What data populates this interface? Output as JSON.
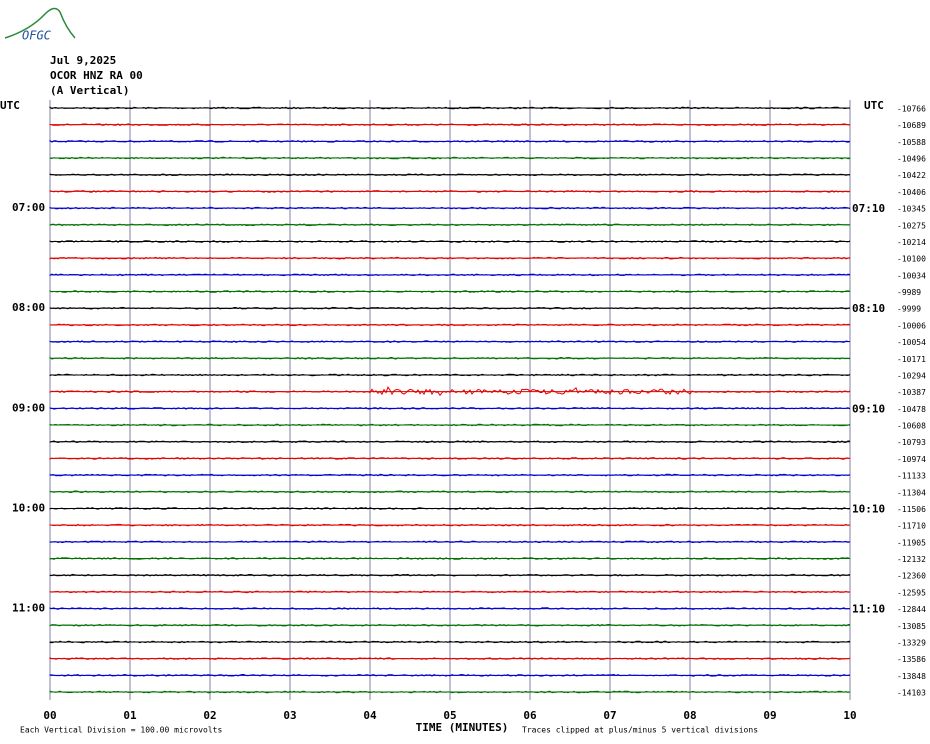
{
  "logo": "OFGC",
  "header": {
    "date": "Jul 9,2025",
    "station": "OCOR HNZ RA 00",
    "component": "(A Vertical)"
  },
  "left": {
    "zone": "UTC",
    "hours": [
      "07:00",
      "08:00",
      "09:00",
      "10:00",
      "11:00"
    ]
  },
  "right": {
    "zone": "UTC",
    "hours": [
      "07:10",
      "08:10",
      "09:10",
      "10:10",
      "11:10"
    ],
    "offsets": [
      "-10766",
      "-10689",
      "-10588",
      "-10496",
      "-10422",
      "-10406",
      "-10345",
      "-10275",
      "-10214",
      "-10100",
      "-10034",
      "-9989",
      "-9999",
      "-10006",
      "-10054",
      "-10171",
      "-10294",
      "-10387",
      "-10478",
      "-10608",
      "-10793",
      "-10974",
      "-11133",
      "-11304",
      "-11506",
      "-11710",
      "-11905",
      "-12132",
      "-12360",
      "-12595",
      "-12844",
      "-13085",
      "-13329",
      "-13586",
      "-13848",
      "-14103"
    ]
  },
  "x_axis": {
    "title": "TIME (MINUTES)",
    "ticks": [
      "00",
      "01",
      "02",
      "03",
      "04",
      "05",
      "06",
      "07",
      "08",
      "09",
      "10"
    ]
  },
  "footer": {
    "scale": "Each Vertical Division =  100.00 microvolts",
    "clip": "Traces clipped at plus/minus 5 vertical divisions"
  },
  "trace_colors": [
    "#000000",
    "#e00000",
    "#0000d0",
    "#007000"
  ]
}
